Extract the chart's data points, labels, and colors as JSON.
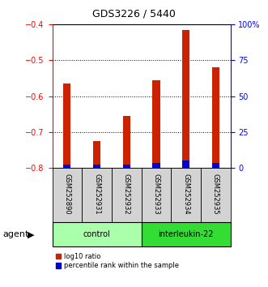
{
  "title": "GDS3226 / 5440",
  "samples": [
    "GSM252890",
    "GSM252931",
    "GSM252932",
    "GSM252933",
    "GSM252934",
    "GSM252935"
  ],
  "log10_values": [
    -0.565,
    -0.725,
    -0.655,
    -0.555,
    -0.415,
    -0.52
  ],
  "percentile_values": [
    2.5,
    2.5,
    2.5,
    3.5,
    5.0,
    3.5
  ],
  "baseline": -0.8,
  "ylim_left": [
    -0.8,
    -0.4
  ],
  "ylim_right": [
    0,
    100
  ],
  "yticks_left": [
    -0.8,
    -0.7,
    -0.6,
    -0.5,
    -0.4
  ],
  "yticks_right": [
    0,
    25,
    50,
    75,
    100
  ],
  "ytick_labels_right": [
    "0",
    "25",
    "50",
    "75",
    "100%"
  ],
  "grid_yticks": [
    -0.5,
    -0.6,
    -0.7
  ],
  "groups": [
    {
      "label": "control",
      "color": "#aaffaa",
      "start": 0,
      "end": 3
    },
    {
      "label": "interleukin-22",
      "color": "#33dd33",
      "start": 3,
      "end": 6
    }
  ],
  "bar_color_red": "#cc2200",
  "bar_color_blue": "#0000cc",
  "bar_width": 0.25,
  "title_fontsize": 9,
  "tick_fontsize": 7,
  "sample_fontsize": 6,
  "group_fontsize": 7,
  "legend_fontsize": 6,
  "agent_fontsize": 8
}
